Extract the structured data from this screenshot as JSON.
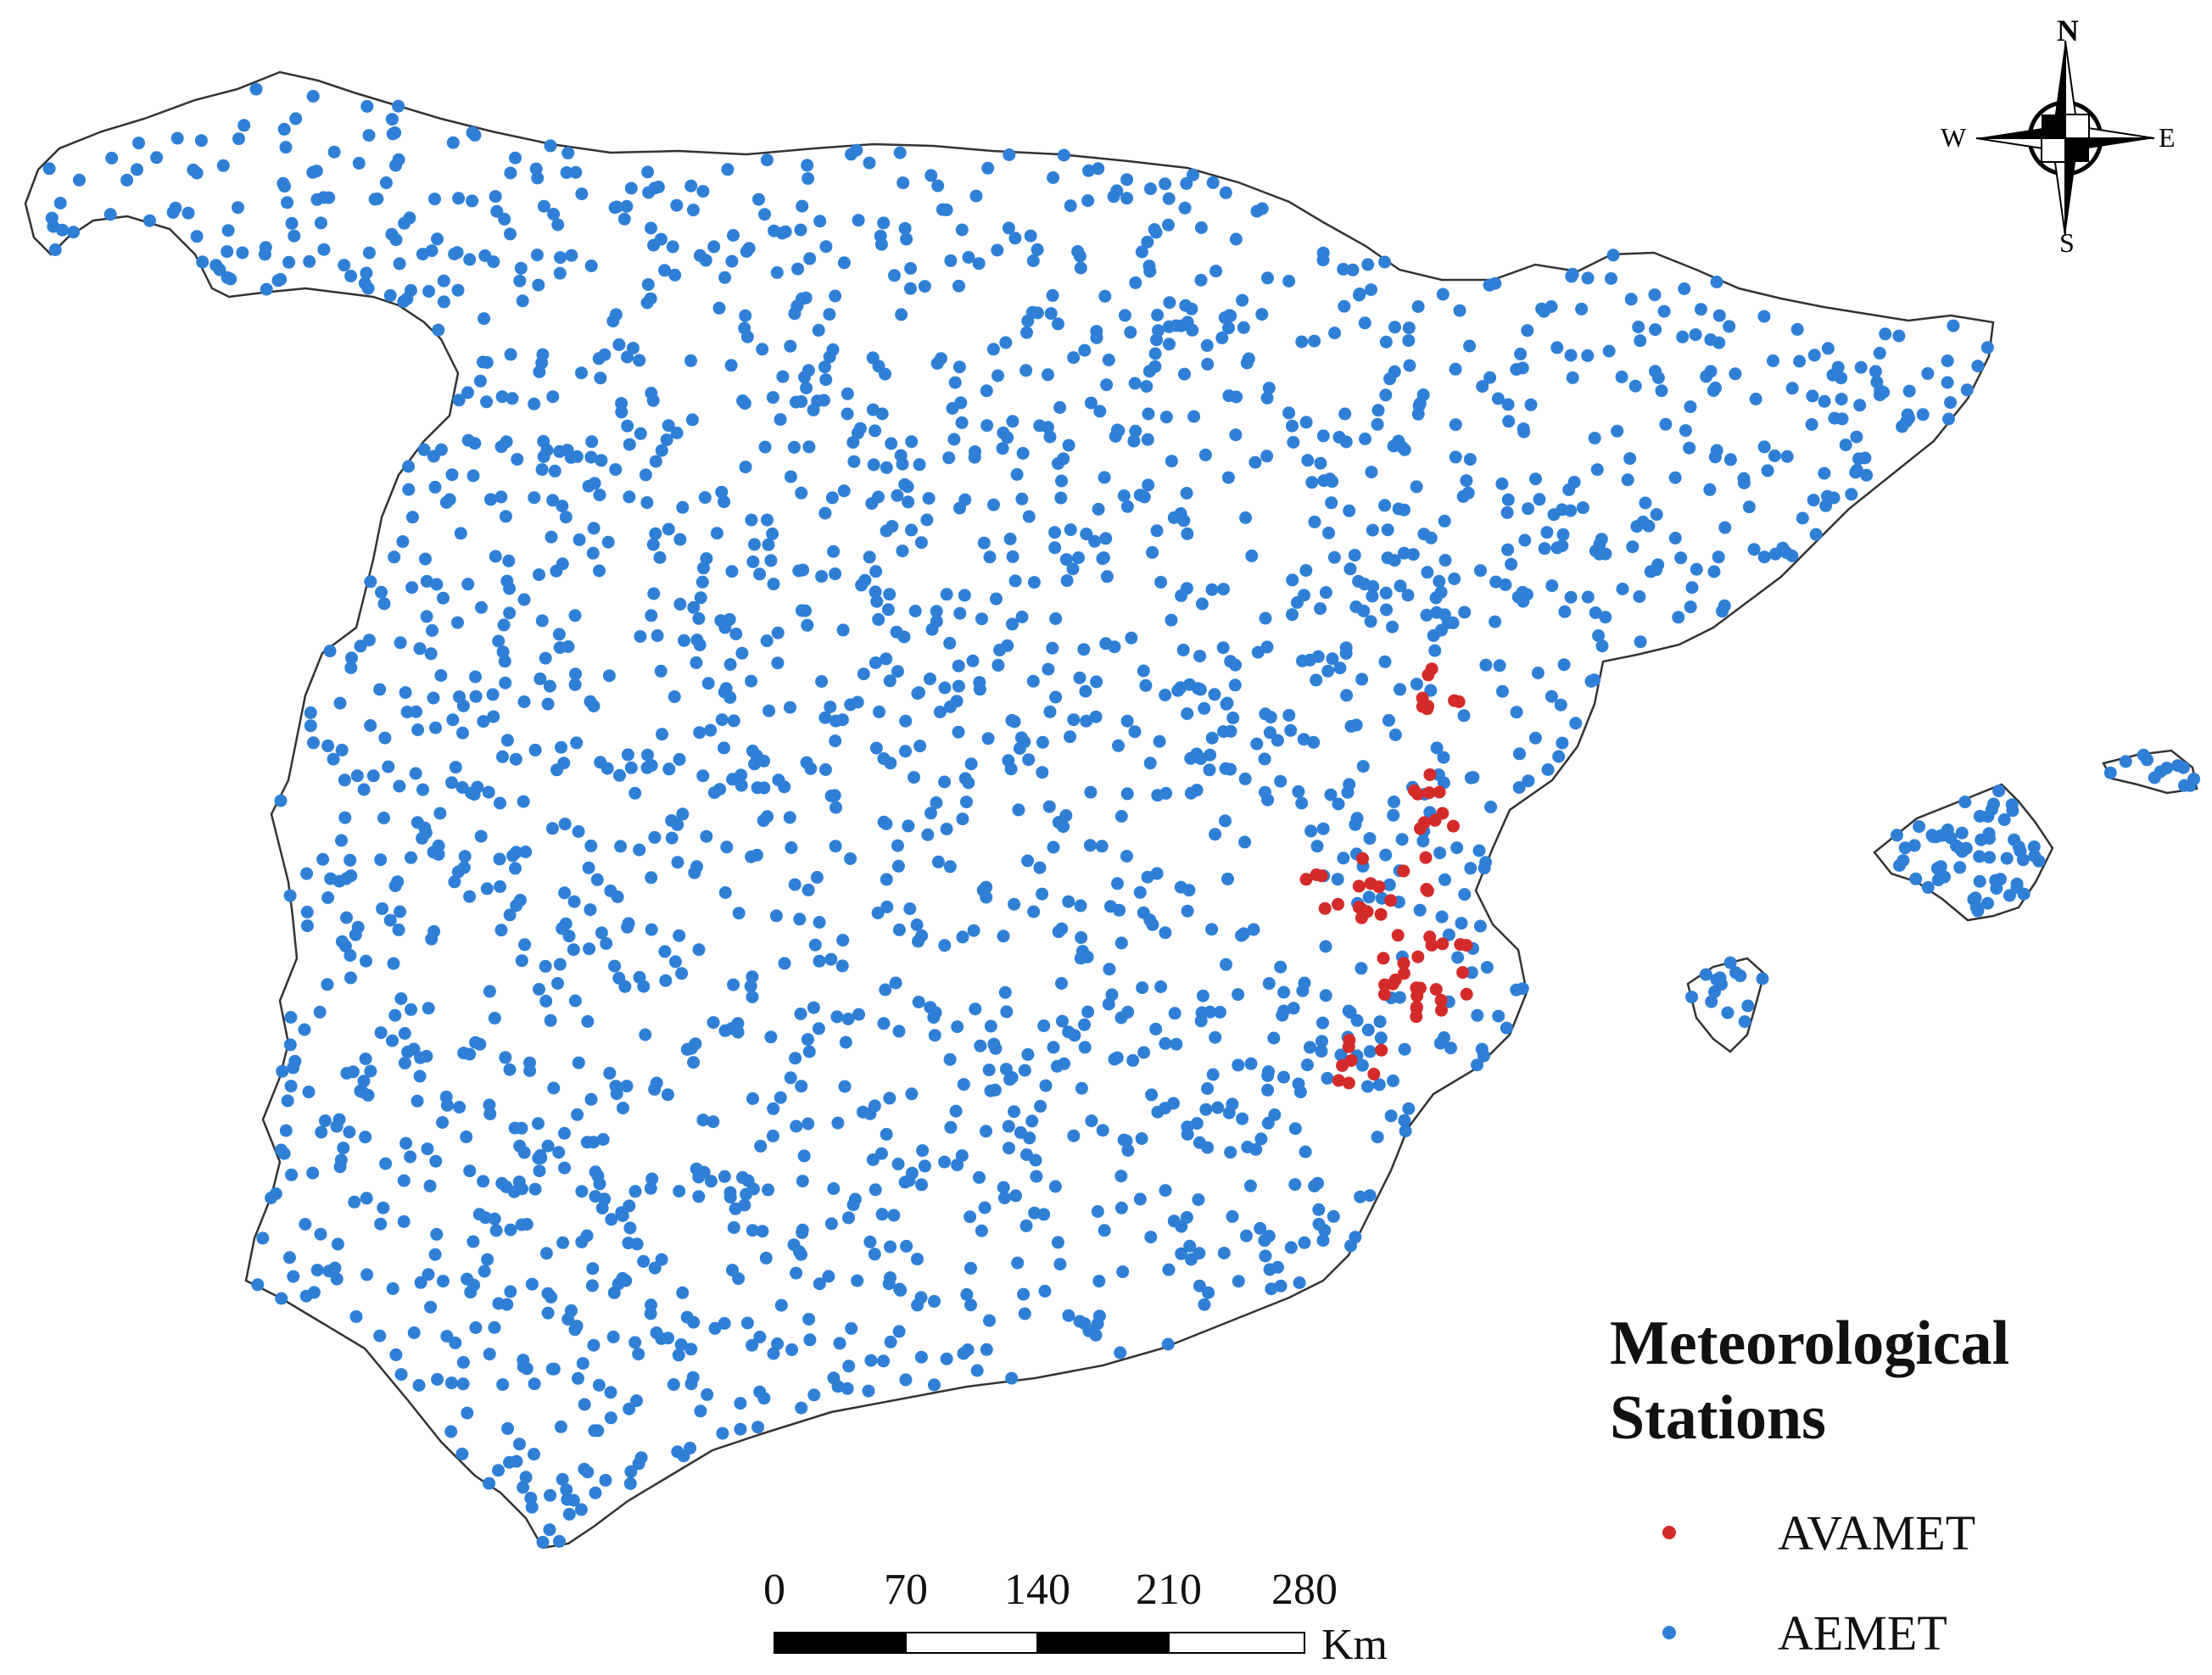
{
  "legend": {
    "title": "Meteorological\nStations",
    "items": [
      {
        "label": "AVAMET",
        "color": "#d42a2a"
      },
      {
        "label": "AEMET",
        "color": "#2f7fd6"
      }
    ]
  },
  "scale_bar": {
    "ticks": [
      "0",
      "70",
      "140",
      "210",
      "280"
    ],
    "unit": "Km"
  },
  "compass": {
    "north": "N",
    "south": "S",
    "east": "E",
    "west": "W"
  },
  "colors": {
    "aemet": "#2f7fd6",
    "avamet": "#d42a2a",
    "outline": "#333333"
  }
}
